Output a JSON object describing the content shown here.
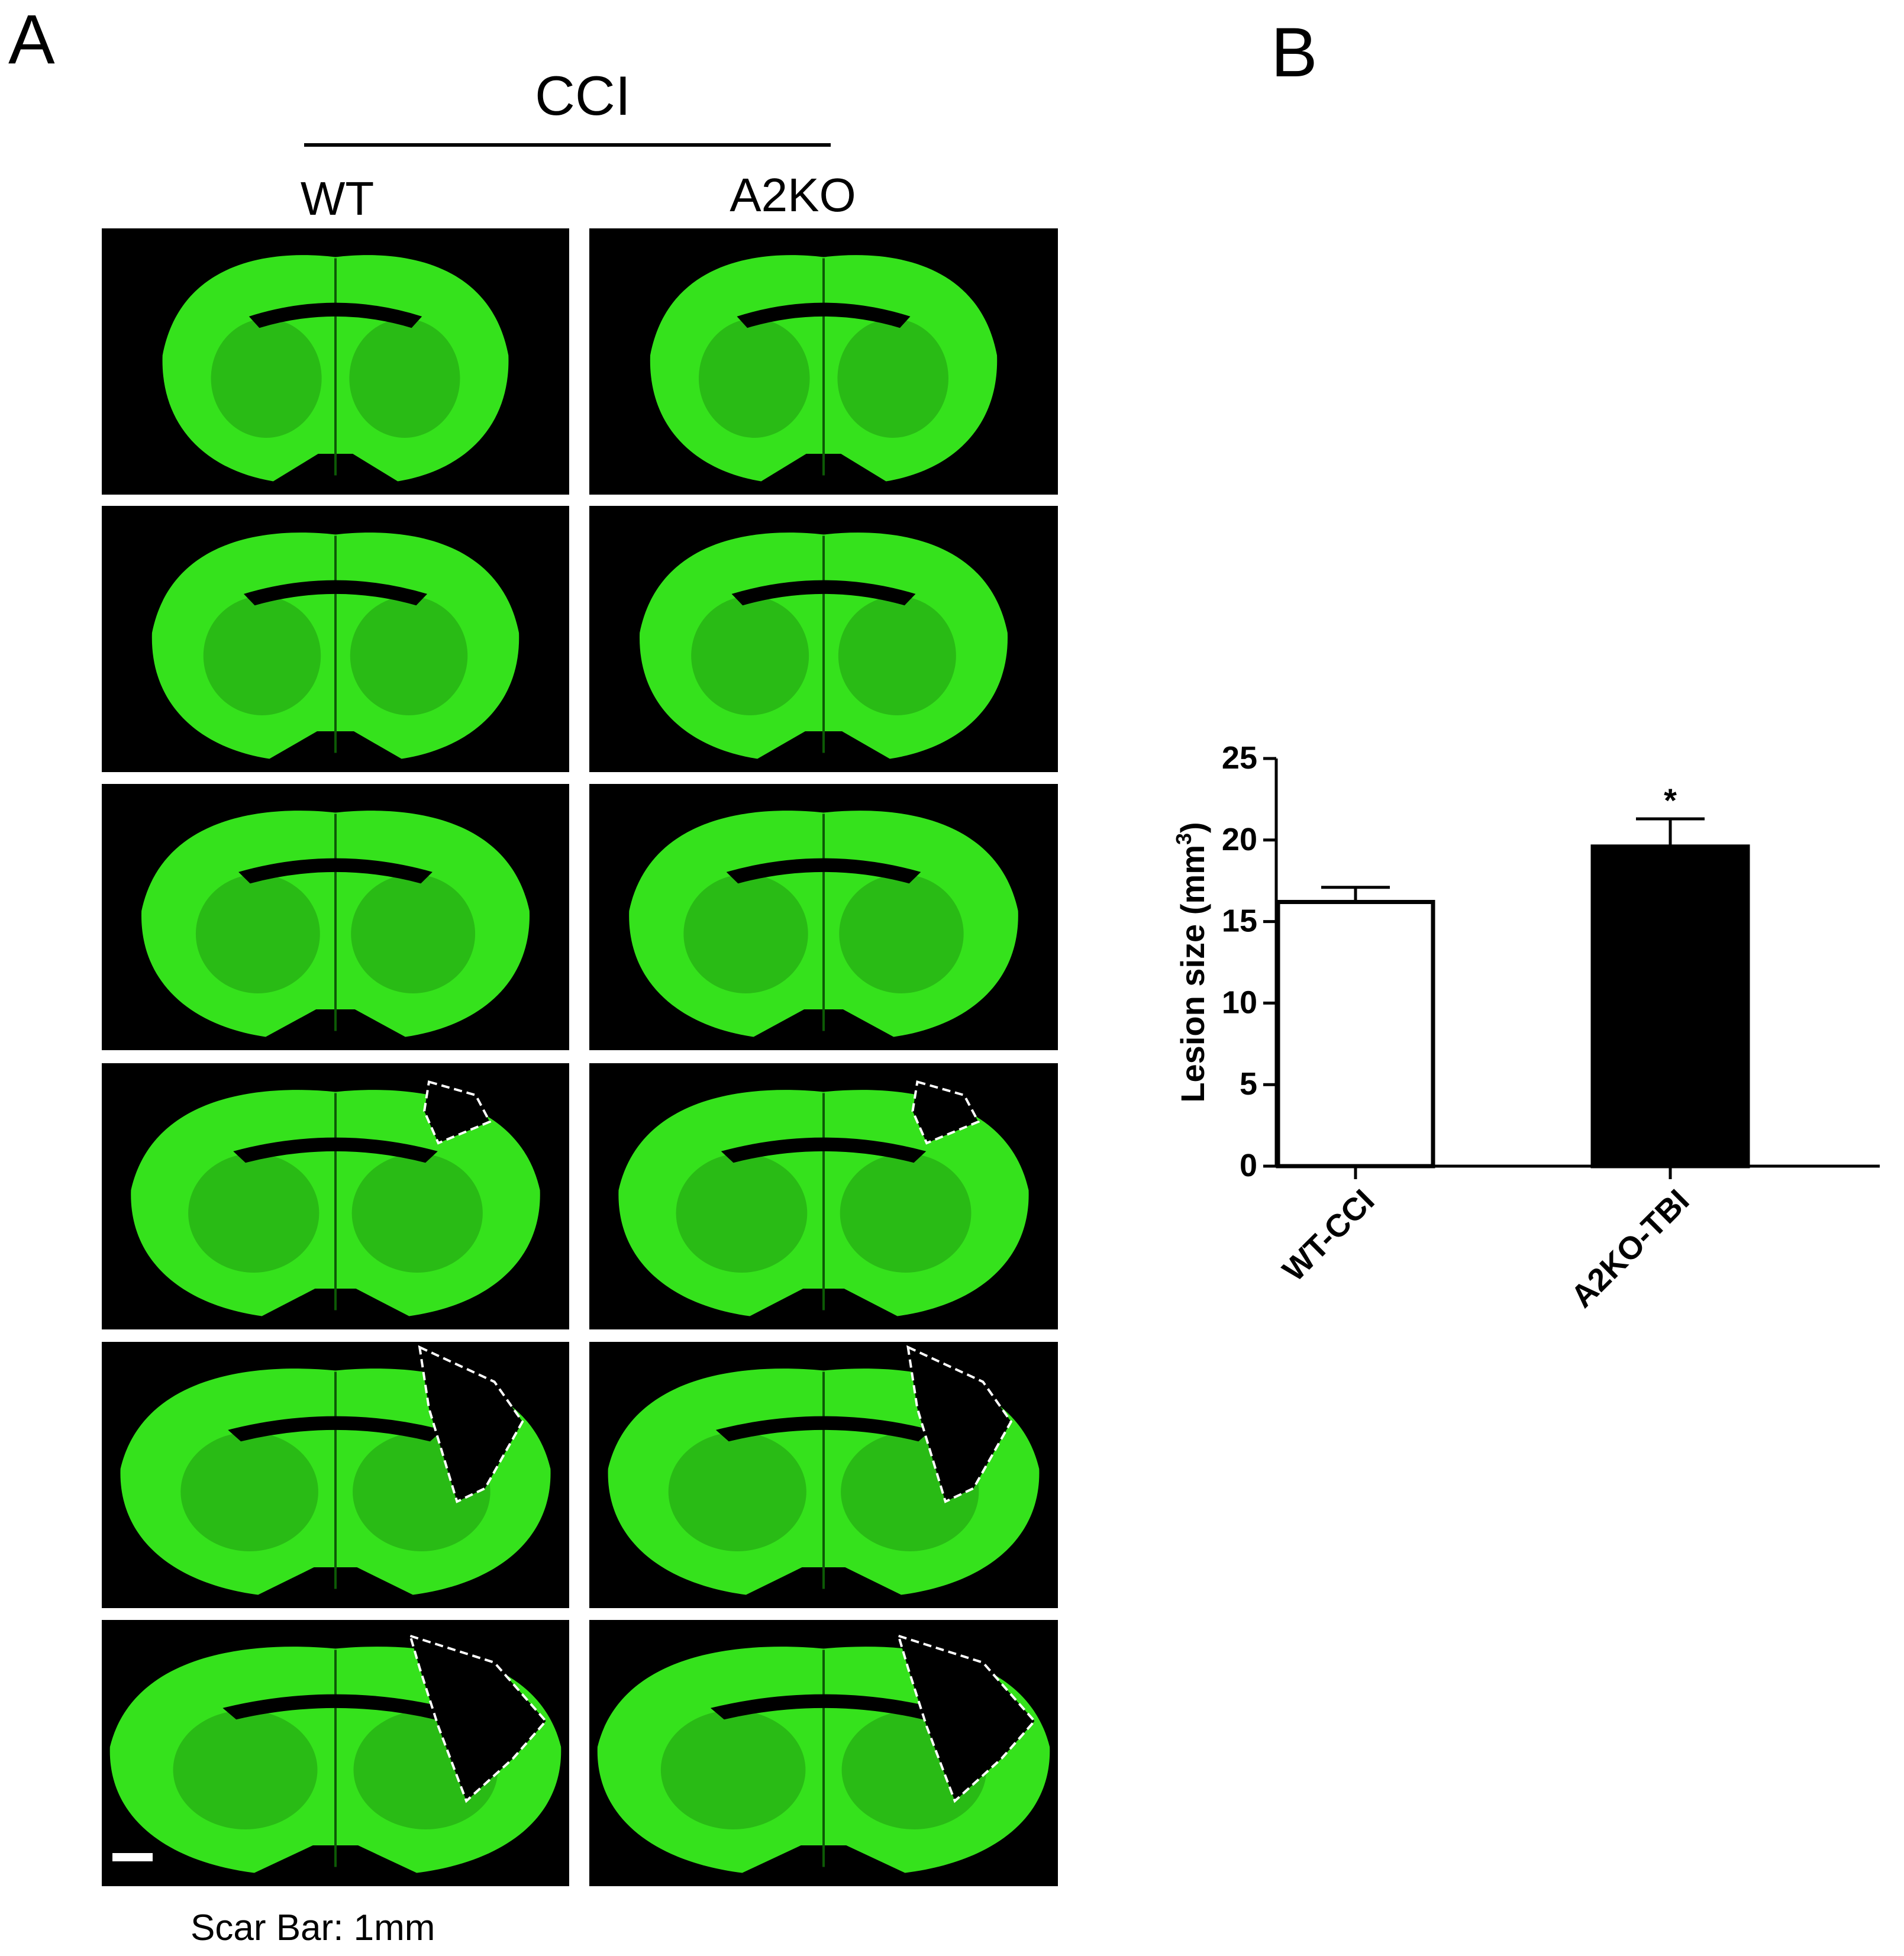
{
  "panel_a": {
    "letter": "A",
    "group_label": "CCI",
    "columns": [
      "WT",
      "A2KO"
    ],
    "scale_bar_caption": "Scar Bar: 1mm",
    "image_rows": 6,
    "tissue_color": "#35e21c",
    "lesion_outline_color": "#ffffff"
  },
  "panel_b": {
    "letter": "B"
  },
  "chart_data": {
    "type": "bar",
    "categories": [
      "WT-CCI",
      "A2KO-TBI"
    ],
    "series": [
      {
        "values": [
          16.2,
          19.6
        ],
        "errors": [
          0.9,
          1.7
        ],
        "fill_colors": [
          "#ffffff",
          "#000000"
        ]
      }
    ],
    "annotations": [
      {
        "category": "A2KO-TBI",
        "text": "*"
      }
    ],
    "ylabel": "Lesion size (mm",
    "ylabel_superscript": "3",
    "ylabel_suffix": ")",
    "ylim": [
      0,
      25
    ],
    "yticks": [
      "0",
      "5",
      "10",
      "15",
      "20",
      "25"
    ],
    "grid": false
  }
}
